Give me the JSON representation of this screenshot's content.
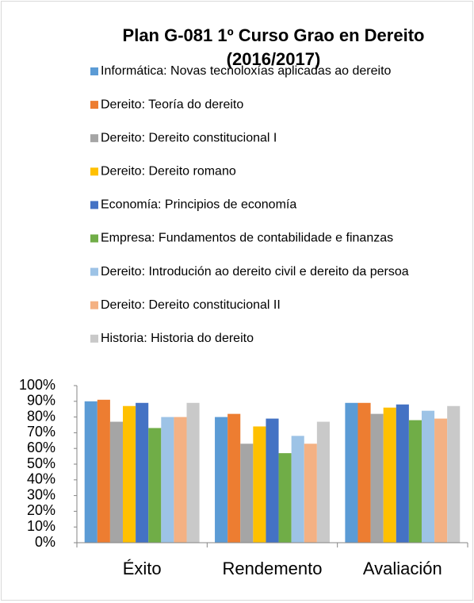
{
  "chart_data": {
    "type": "bar",
    "title": "Plan G-081 1º Curso Grao en Dereito",
    "subtitle": "(2016/2017)",
    "categories": [
      "Éxito",
      "Rendemento",
      "Avaliación"
    ],
    "series": [
      {
        "name": "Informática: Novas tecnoloxías aplicadas ao dereito",
        "color": "#5b9bd5",
        "values": [
          90,
          80,
          89
        ]
      },
      {
        "name": "Dereito: Teoría do dereito",
        "color": "#ed7d31",
        "values": [
          91,
          82,
          89
        ]
      },
      {
        "name": "Dereito: Dereito constitucional I",
        "color": "#a5a5a5",
        "values": [
          77,
          63,
          82
        ]
      },
      {
        "name": "Dereito: Dereito romano",
        "color": "#ffc000",
        "values": [
          87,
          74,
          86
        ]
      },
      {
        "name": "Economía: Principios de economía",
        "color": "#4472c4",
        "values": [
          89,
          79,
          88
        ]
      },
      {
        "name": "Empresa: Fundamentos de contabilidade e finanzas",
        "color": "#70ad47",
        "values": [
          73,
          57,
          78
        ]
      },
      {
        "name": "Dereito: Introdución ao dereito civil e dereito da persoa",
        "color": "#9dc3e6",
        "values": [
          80,
          68,
          84
        ]
      },
      {
        "name": "Dereito: Dereito constitucional II",
        "color": "#f4b183",
        "values": [
          80,
          63,
          79
        ]
      },
      {
        "name": "Historia: Historia do dereito",
        "color": "#c9c9c9",
        "values": [
          89,
          77,
          87
        ]
      }
    ],
    "ylim": [
      0,
      100
    ],
    "yticks": [
      {
        "value": 0,
        "label": "0%"
      },
      {
        "value": 10,
        "label": "10%"
      },
      {
        "value": 20,
        "label": "20%"
      },
      {
        "value": 30,
        "label": "30%"
      },
      {
        "value": 40,
        "label": "40%"
      },
      {
        "value": 50,
        "label": "50%"
      },
      {
        "value": 60,
        "label": "60%"
      },
      {
        "value": 70,
        "label": "70%"
      },
      {
        "value": 80,
        "label": "80%"
      },
      {
        "value": 90,
        "label": "90%"
      },
      {
        "value": 100,
        "label": "100%"
      }
    ],
    "grid": false,
    "legend": "top"
  }
}
